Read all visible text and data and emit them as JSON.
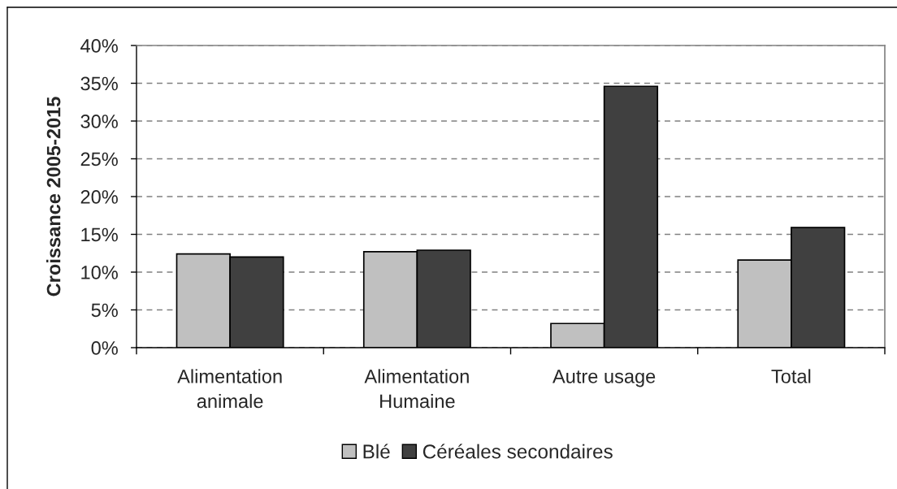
{
  "chart_data": {
    "type": "bar",
    "ylabel": "Croissance 2005-2015",
    "categories": [
      "Alimentation\nanimale",
      "Alimentation\nHumaine",
      "Autre usage",
      "Total"
    ],
    "series": [
      {
        "name": "Blé",
        "color": "#c0c0c0",
        "values": [
          12.4,
          12.7,
          3.2,
          11.6
        ]
      },
      {
        "name": "Céréales secondaires",
        "color": "#404040",
        "values": [
          12.0,
          12.9,
          34.6,
          15.9
        ]
      }
    ],
    "ylim": [
      0,
      40
    ],
    "yticks": [
      {
        "value": 0,
        "label": "0%"
      },
      {
        "value": 5,
        "label": "5%"
      },
      {
        "value": 10,
        "label": "10%"
      },
      {
        "value": 15,
        "label": "15%"
      },
      {
        "value": 20,
        "label": "20%"
      },
      {
        "value": 25,
        "label": "25%"
      },
      {
        "value": 30,
        "label": "30%"
      },
      {
        "value": 35,
        "label": "35%"
      },
      {
        "value": 40,
        "label": "40%"
      }
    ],
    "grid": "y",
    "legend": "bottom"
  }
}
